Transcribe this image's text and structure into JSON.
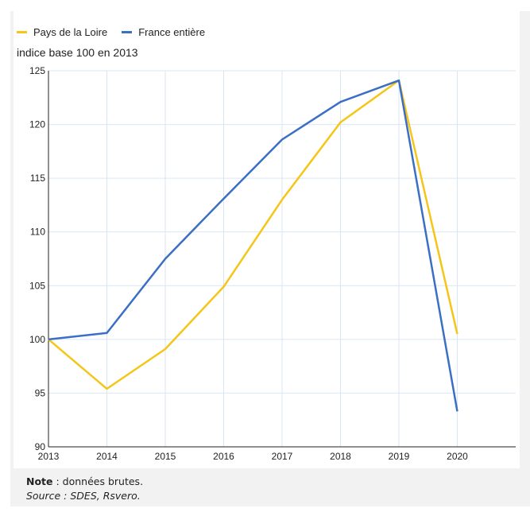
{
  "legend": {
    "series1": "Pays de la Loire",
    "series2": "France entière"
  },
  "unit_label": "indice base 100 en 2013",
  "note": {
    "label": "Note",
    "text": " : données brutes.",
    "source": "Source : SDES, Rsvero."
  },
  "colors": {
    "pays_de_la_loire": "#f5c518",
    "france_entiere": "#3a6fc4",
    "grid": "#d8e6f4"
  },
  "chart_data": {
    "type": "line",
    "x": [
      "2013",
      "2014",
      "2015",
      "2016",
      "2017",
      "2018",
      "2019",
      "2020"
    ],
    "ylabel": "indice base 100 en 2013",
    "ylim": [
      90,
      125
    ],
    "yticks": [
      90,
      95,
      100,
      105,
      110,
      115,
      120,
      125
    ],
    "grid": true,
    "legend_position": "top-left",
    "series": [
      {
        "name": "Pays de la Loire",
        "values": [
          100,
          95.4,
          99.1,
          104.9,
          113.0,
          120.2,
          124.1,
          100.5
        ]
      },
      {
        "name": "France entière",
        "values": [
          100,
          100.6,
          107.5,
          113.1,
          118.6,
          122.1,
          124.1,
          93.3
        ]
      }
    ]
  }
}
